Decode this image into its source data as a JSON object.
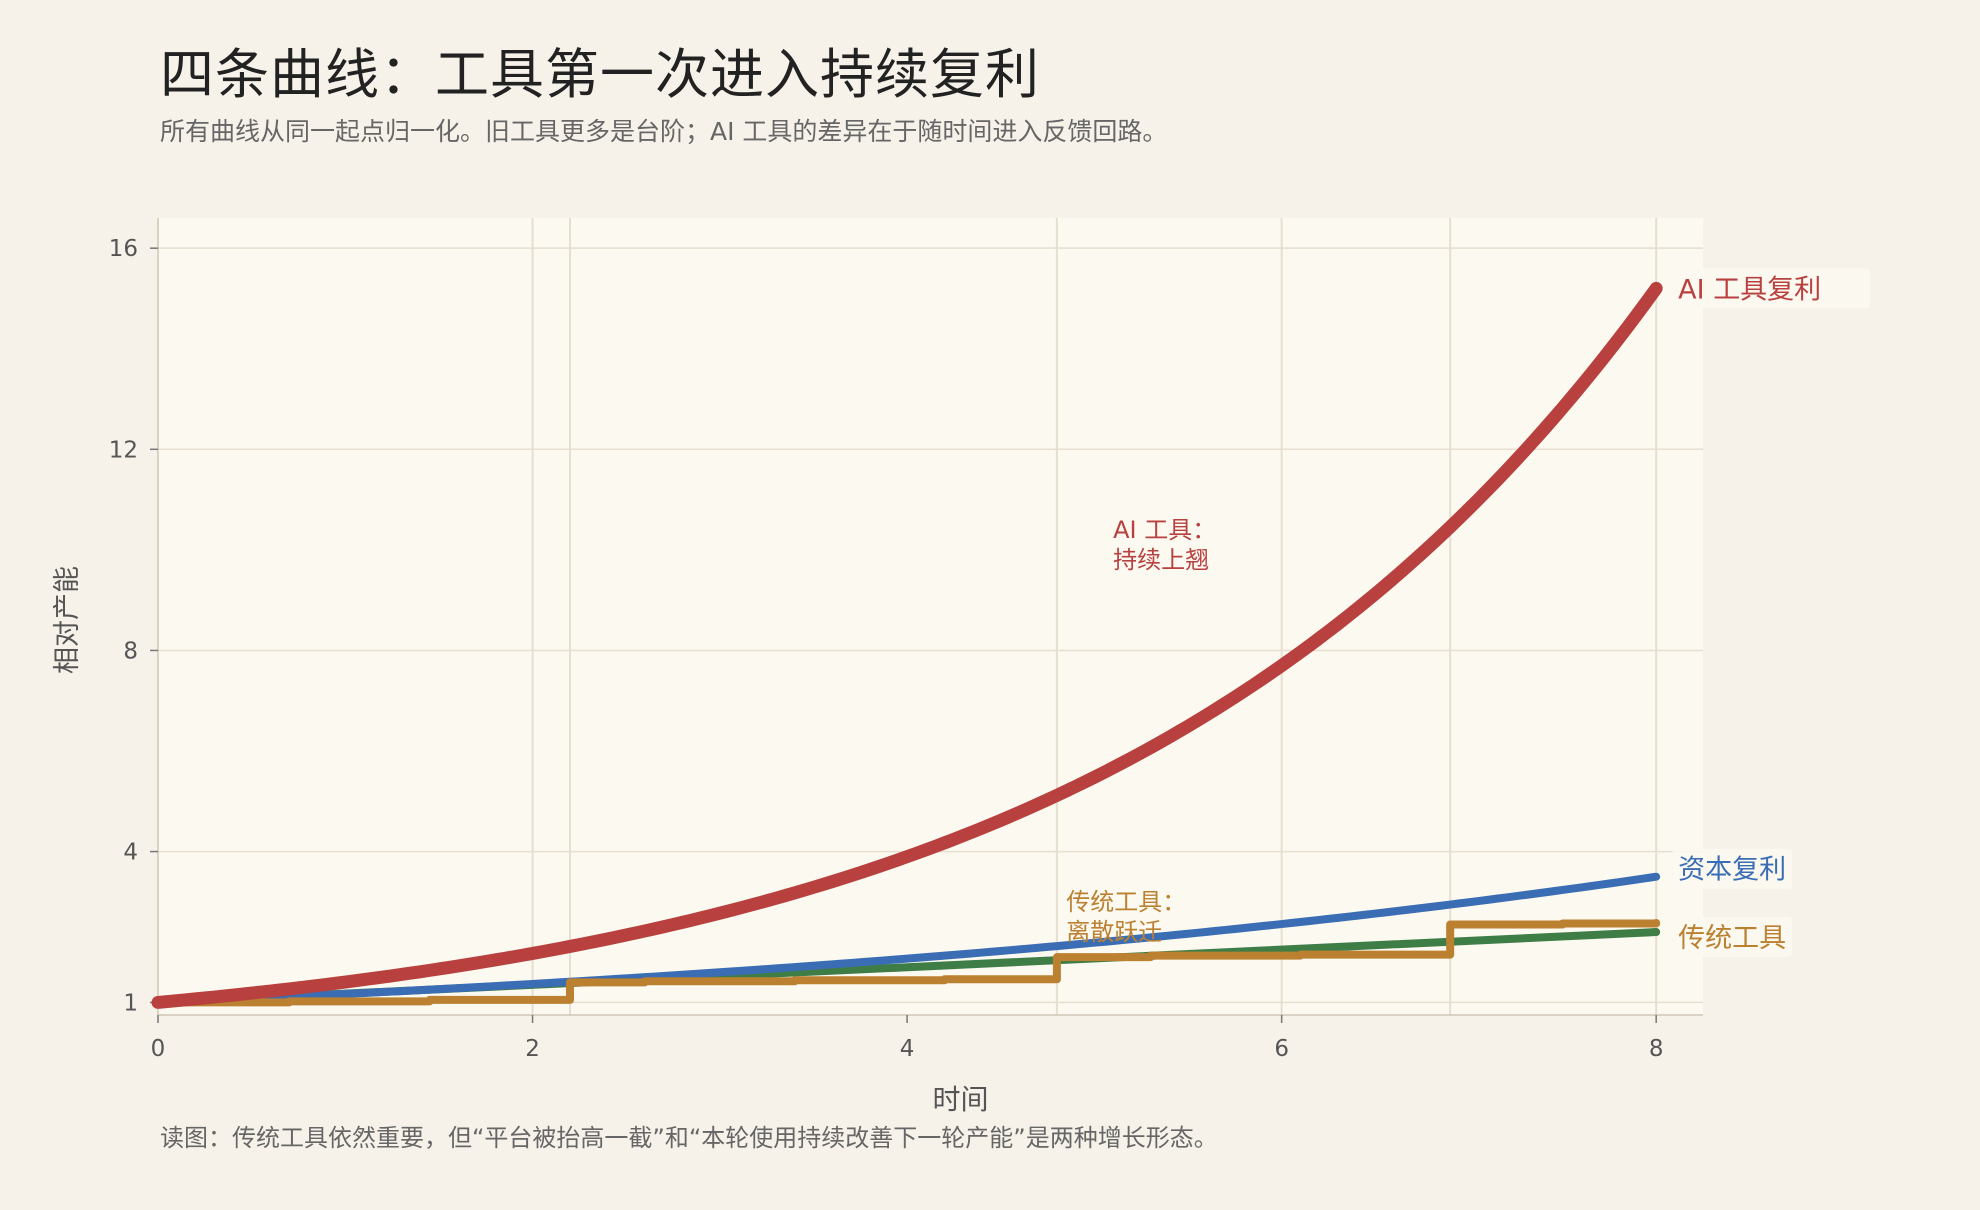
{
  "header": {
    "title": "四条曲线：工具第一次进入持续复利",
    "subtitle": "所有曲线从同一起点归一化。旧工具更多是台阶；AI 工具的差异在于随时间进入反馈回路。"
  },
  "footer": {
    "note": "读图：传统工具依然重要，但“平台被抬高一截”和“本轮使用持续改善下一轮产能”是两种增长形态。"
  },
  "colors": {
    "background": "#f6f2ea",
    "plot_background": "#fcf9f1",
    "grid": "#e6dfcf",
    "ai": "#b8413f",
    "capital": "#3a6db4",
    "labor": "#3f7d47",
    "traditional": "#bb8131",
    "axis_text": "#555555"
  },
  "chart_data": {
    "type": "line",
    "xlabel": "时间",
    "ylabel": "相对产能",
    "xlim": [
      0,
      8.25
    ],
    "ylim": [
      0.75,
      16.6
    ],
    "xticks": [
      0,
      2,
      4,
      6,
      8
    ],
    "yticks": [
      1,
      4,
      8,
      12,
      16
    ],
    "vertical_markers": [
      2.0,
      2.2,
      4.8,
      6.0,
      6.9,
      8.0
    ],
    "grid": true,
    "series": [
      {
        "name": "AI 工具复利",
        "kind": "exponential",
        "x": [
          0,
          1,
          2,
          3,
          4,
          5,
          6,
          7,
          8
        ],
        "values": [
          1.0,
          1.4,
          1.97,
          2.77,
          3.88,
          5.46,
          7.67,
          10.77,
          15.2
        ]
      },
      {
        "name": "资本复利",
        "kind": "exponential",
        "x": [
          0,
          1,
          2,
          3,
          4,
          5,
          6,
          7,
          8
        ],
        "values": [
          1.0,
          1.17,
          1.37,
          1.6,
          1.87,
          2.19,
          2.56,
          3.0,
          3.5
        ]
      },
      {
        "name": "",
        "kind": "linear",
        "x": [
          0,
          8
        ],
        "values": [
          1.0,
          2.4
        ]
      },
      {
        "name": "传统工具",
        "kind": "step",
        "x": [
          0,
          0.7,
          1.45,
          2.2,
          2.6,
          3.4,
          4.2,
          4.8,
          5.3,
          6.1,
          6.9,
          7.5,
          8.0
        ],
        "values": [
          1.0,
          1.02,
          1.05,
          1.4,
          1.42,
          1.44,
          1.46,
          1.9,
          1.93,
          1.95,
          2.55,
          2.57,
          2.58
        ]
      }
    ],
    "series_labels": [
      {
        "text": "AI 工具复利",
        "series": 0
      },
      {
        "text": "资本复利",
        "series": 1
      },
      {
        "text": "传统工具",
        "series": 3
      }
    ],
    "annotations": [
      {
        "lines": [
          "AI 工具：",
          "持续上翘"
        ],
        "x": 5.1,
        "y": 10.0,
        "color_key": "ai"
      },
      {
        "lines": [
          "传统工具：",
          "离散跃迁"
        ],
        "x": 4.85,
        "y": 2.6,
        "color_key": "traditional"
      }
    ]
  }
}
